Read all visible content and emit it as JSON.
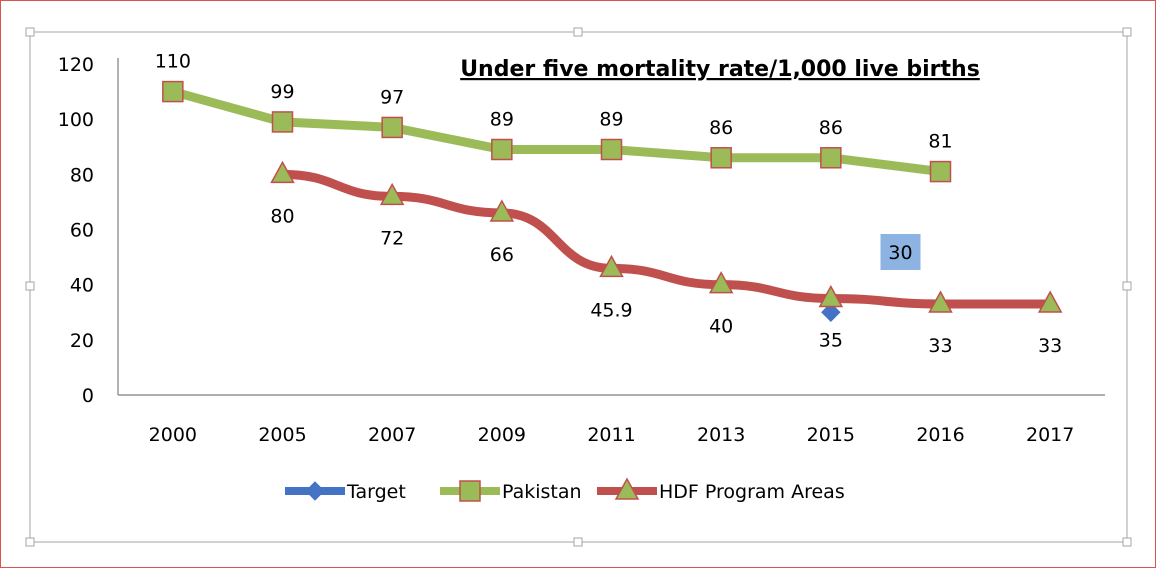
{
  "chart_data": {
    "type": "line",
    "title": "Under five mortality rate/1,000 live births",
    "categories": [
      "2000",
      "2005",
      "2007",
      "2009",
      "2011",
      "2013",
      "2015",
      "2016",
      "2017"
    ],
    "ylim": [
      0,
      120
    ],
    "yticks": [
      0,
      20,
      40,
      60,
      80,
      100,
      120
    ],
    "grid": false,
    "legend_position": "bottom",
    "series": [
      {
        "name": "Target",
        "marker": "diamond",
        "color": "#4472c4",
        "values": [
          null,
          null,
          null,
          null,
          null,
          null,
          30,
          null,
          null
        ]
      },
      {
        "name": "Pakistan",
        "marker": "square",
        "color": "#9bbb59",
        "marker_edge": "#c0504d",
        "values": [
          110,
          99,
          97,
          89,
          89,
          86,
          86,
          81,
          null
        ],
        "labels": [
          "110",
          "99",
          "97",
          "89",
          "89",
          "86",
          "86",
          "81",
          null
        ]
      },
      {
        "name": "HDF Program Areas",
        "marker": "triangle",
        "color": "#c0504d",
        "marker_fill": "#9bbb59",
        "values": [
          null,
          80,
          72,
          66,
          45.9,
          40,
          35,
          33,
          33
        ],
        "labels": [
          null,
          "80",
          "72",
          "66",
          "45.9",
          "40",
          "35",
          "33",
          "33"
        ]
      }
    ],
    "annotations": [
      {
        "text": "30",
        "background": "#8db3e2",
        "near_category": "2016"
      }
    ]
  }
}
